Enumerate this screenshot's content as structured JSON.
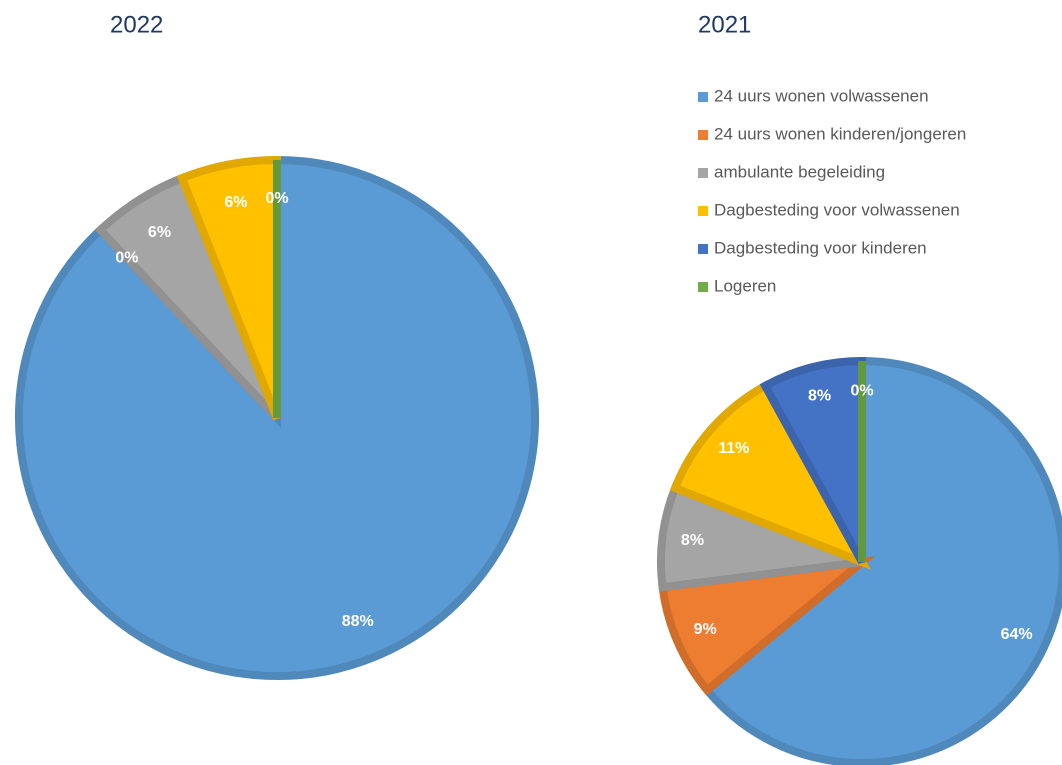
{
  "chart_data": [
    {
      "type": "pie",
      "title": "2022",
      "categories": [
        "24 uurs wonen volwassenen",
        "24 uurs wonen kinderen/jongeren",
        "ambulante begeleiding",
        "Dagbesteding voor volwassenen",
        "Dagbesteding voor kinderen",
        "Logeren"
      ],
      "values": [
        88,
        0,
        6,
        6,
        0,
        0
      ],
      "value_labels": [
        "88%",
        "0%",
        "6%",
        "6%",
        "0%",
        null
      ],
      "colors": [
        "#5b9bd5",
        "#ed7d31",
        "#a5a5a5",
        "#ffc000",
        "#4472c4",
        "#70ad47"
      ]
    },
    {
      "type": "pie",
      "title": "2021",
      "categories": [
        "24 uurs wonen volwassenen",
        "24 uurs wonen kinderen/jongeren",
        "ambulante begeleiding",
        "Dagbesteding voor volwassenen",
        "Dagbesteding voor kinderen",
        "Logeren"
      ],
      "values": [
        64,
        9,
        8,
        11,
        8,
        0
      ],
      "value_labels": [
        "64%",
        "9%",
        "8%",
        "11%",
        "8%",
        "0%"
      ],
      "colors": [
        "#5b9bd5",
        "#ed7d31",
        "#a5a5a5",
        "#ffc000",
        "#4472c4",
        "#70ad47"
      ],
      "legend": "top"
    }
  ]
}
